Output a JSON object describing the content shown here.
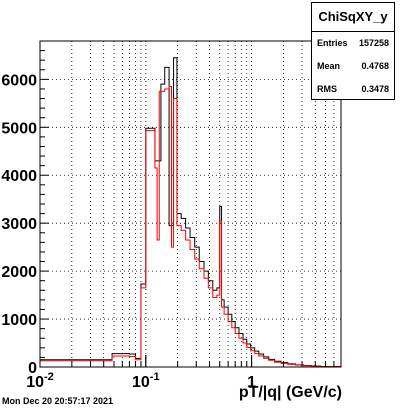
{
  "chart_data": {
    "type": "line",
    "title": "",
    "xlabel": "pT/|q| (GeV/c)",
    "ylabel": "",
    "x_scale": "log",
    "xlim": [
      0.01,
      7.0
    ],
    "ylim": [
      0,
      6800
    ],
    "grid": true,
    "x_tick_labels": [
      "10^-2",
      "10^-1",
      "1"
    ],
    "y_tick_labels": [
      "0",
      "1000",
      "2000",
      "3000",
      "4000",
      "5000",
      "6000"
    ],
    "y_ticks": [
      0,
      1000,
      2000,
      3000,
      4000,
      5000,
      6000
    ],
    "x_major_ticks": [
      0.01,
      0.1,
      1
    ],
    "series": [
      {
        "color": "#000000",
        "bins": [
          [
            0.01,
            0.048,
            150
          ],
          [
            0.048,
            0.07,
            280
          ],
          [
            0.07,
            0.08,
            270
          ],
          [
            0.08,
            0.09,
            180
          ],
          [
            0.09,
            0.1,
            1730
          ],
          [
            0.1,
            0.122,
            4980
          ],
          [
            0.122,
            0.139,
            4300
          ],
          [
            0.139,
            0.151,
            5900
          ],
          [
            0.151,
            0.166,
            6250
          ],
          [
            0.166,
            0.183,
            2950
          ],
          [
            0.183,
            0.197,
            6450
          ],
          [
            0.197,
            0.216,
            3200
          ],
          [
            0.216,
            0.238,
            3100
          ],
          [
            0.238,
            0.262,
            2900
          ],
          [
            0.262,
            0.29,
            2700
          ],
          [
            0.29,
            0.32,
            2500
          ],
          [
            0.32,
            0.355,
            2200
          ],
          [
            0.355,
            0.39,
            2000
          ],
          [
            0.39,
            0.43,
            1800
          ],
          [
            0.43,
            0.47,
            1600
          ],
          [
            0.47,
            0.5,
            1650
          ],
          [
            0.5,
            0.52,
            3350
          ],
          [
            0.52,
            0.55,
            1400
          ],
          [
            0.55,
            0.6,
            1250
          ],
          [
            0.6,
            0.65,
            1100
          ],
          [
            0.65,
            0.7,
            950
          ],
          [
            0.7,
            0.76,
            820
          ],
          [
            0.76,
            0.83,
            700
          ],
          [
            0.83,
            0.9,
            580
          ],
          [
            0.9,
            0.98,
            480
          ],
          [
            0.98,
            1.07,
            400
          ],
          [
            1.07,
            1.17,
            330
          ],
          [
            1.17,
            1.3,
            270
          ],
          [
            1.3,
            1.45,
            210
          ],
          [
            1.45,
            1.65,
            160
          ],
          [
            1.65,
            1.9,
            120
          ],
          [
            1.9,
            2.2,
            90
          ],
          [
            2.2,
            2.6,
            65
          ],
          [
            2.6,
            3.1,
            45
          ],
          [
            3.1,
            3.7,
            30
          ],
          [
            3.7,
            4.5,
            20
          ],
          [
            4.5,
            7.0,
            10
          ]
        ]
      },
      {
        "color": "#ff0000",
        "bins": [
          [
            0.01,
            0.048,
            130
          ],
          [
            0.048,
            0.07,
            230
          ],
          [
            0.07,
            0.08,
            220
          ],
          [
            0.08,
            0.09,
            150
          ],
          [
            0.09,
            0.1,
            1650
          ],
          [
            0.1,
            0.122,
            4930
          ],
          [
            0.122,
            0.128,
            4150
          ],
          [
            0.128,
            0.134,
            2650
          ],
          [
            0.134,
            0.151,
            5750
          ],
          [
            0.151,
            0.166,
            5800
          ],
          [
            0.166,
            0.175,
            5850
          ],
          [
            0.175,
            0.183,
            2500
          ],
          [
            0.183,
            0.197,
            5600
          ],
          [
            0.197,
            0.216,
            2950
          ],
          [
            0.216,
            0.238,
            2850
          ],
          [
            0.238,
            0.262,
            2650
          ],
          [
            0.262,
            0.29,
            2450
          ],
          [
            0.29,
            0.32,
            2250
          ],
          [
            0.32,
            0.355,
            2050
          ],
          [
            0.355,
            0.39,
            1850
          ],
          [
            0.39,
            0.43,
            1650
          ],
          [
            0.43,
            0.47,
            1450
          ],
          [
            0.47,
            0.5,
            1500
          ],
          [
            0.5,
            0.52,
            3050
          ],
          [
            0.52,
            0.55,
            1250
          ],
          [
            0.55,
            0.6,
            1100
          ],
          [
            0.6,
            0.65,
            950
          ],
          [
            0.65,
            0.7,
            820
          ],
          [
            0.7,
            0.76,
            700
          ],
          [
            0.76,
            0.83,
            600
          ],
          [
            0.83,
            0.9,
            500
          ],
          [
            0.9,
            0.98,
            410
          ],
          [
            0.98,
            1.07,
            340
          ],
          [
            1.07,
            1.17,
            280
          ],
          [
            1.17,
            1.3,
            230
          ],
          [
            1.3,
            1.45,
            180
          ],
          [
            1.45,
            1.65,
            140
          ],
          [
            1.65,
            1.9,
            100
          ],
          [
            1.9,
            2.2,
            75
          ],
          [
            2.2,
            2.6,
            55
          ],
          [
            2.6,
            3.1,
            38
          ],
          [
            3.1,
            3.7,
            25
          ],
          [
            3.7,
            4.5,
            15
          ],
          [
            4.5,
            7.0,
            8
          ]
        ]
      }
    ]
  },
  "stats": {
    "title": "ChiSqXY_y",
    "rows": [
      {
        "label": "Entries",
        "value": "157258"
      },
      {
        "label": "Mean",
        "value": "0.4768"
      },
      {
        "label": "RMS",
        "value": "0.3478"
      }
    ]
  },
  "timestamp": "Mon Dec 20 20:57:17 2021"
}
